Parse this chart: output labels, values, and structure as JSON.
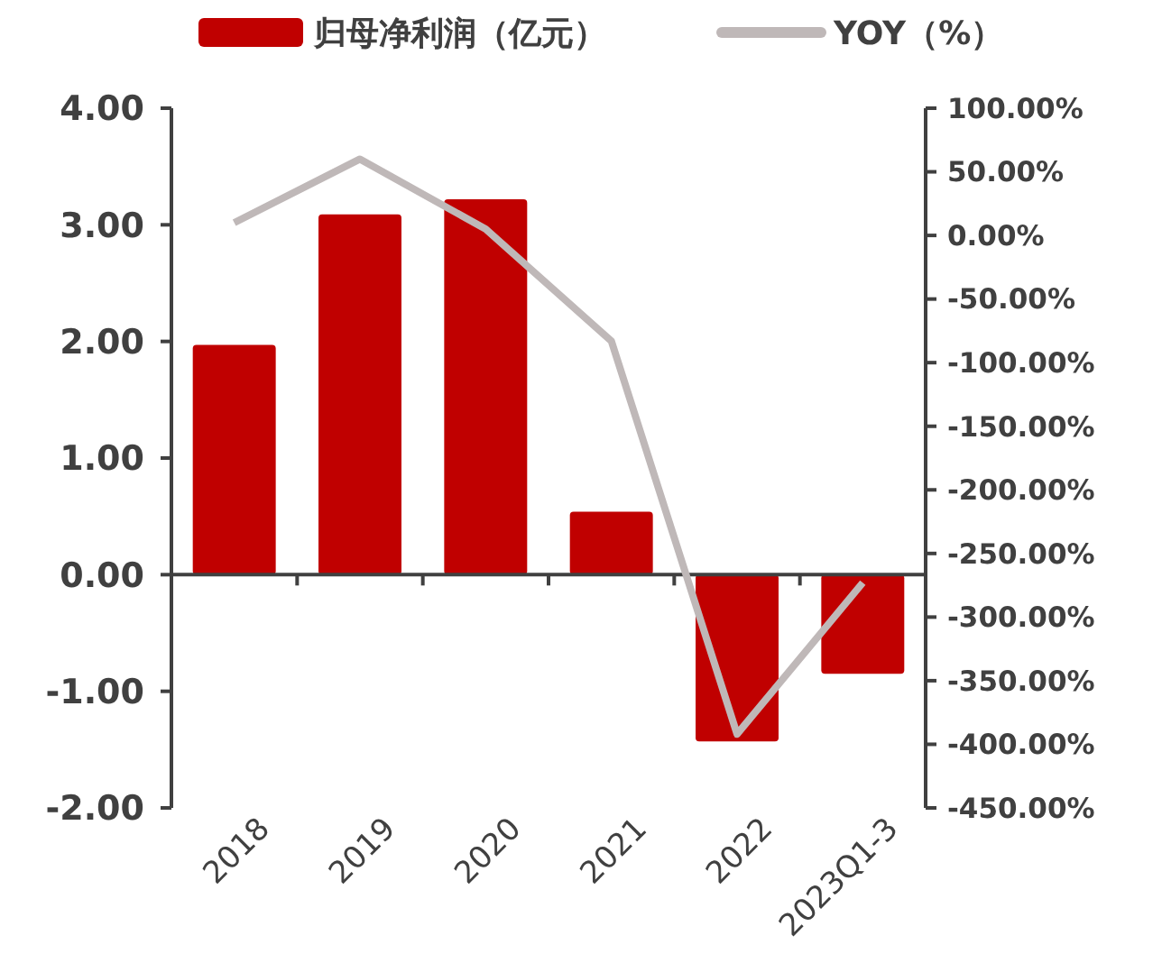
{
  "chart_data": {
    "type": "bar",
    "categories": [
      "2018",
      "2019",
      "2020",
      "2021",
      "2022",
      "2023Q1-3"
    ],
    "series": [
      {
        "name": "归母净利润（亿元）",
        "color": "#c00000",
        "values": [
          1.97,
          3.09,
          3.22,
          0.54,
          -1.43,
          -0.85
        ]
      },
      {
        "name": "YOY（%）",
        "color": "#bfb8b8",
        "type": "line",
        "axis": "y2",
        "values": [
          10,
          60,
          5,
          -83,
          -392,
          -273
        ]
      }
    ],
    "ylim": [
      -2,
      4
    ],
    "yticks": [
      {
        "value": -2,
        "label": "-2.00"
      },
      {
        "value": -1,
        "label": "-1.00"
      },
      {
        "value": 0,
        "label": "0.00"
      },
      {
        "value": 1,
        "label": "1.00"
      },
      {
        "value": 2,
        "label": "2.00"
      },
      {
        "value": 3,
        "label": "3.00"
      },
      {
        "value": 4,
        "label": "4.00"
      }
    ],
    "y2lim": [
      -450,
      100
    ],
    "y2ticks": [
      {
        "value": -450,
        "label": "-450.00%"
      },
      {
        "value": -400,
        "label": "-400.00%"
      },
      {
        "value": -350,
        "label": "-350.00%"
      },
      {
        "value": -300,
        "label": "-300.00%"
      },
      {
        "value": -250,
        "label": "-250.00%"
      },
      {
        "value": -200,
        "label": "-200.00%"
      },
      {
        "value": -150,
        "label": "-150.00%"
      },
      {
        "value": -100,
        "label": "-100.00%"
      },
      {
        "value": -50,
        "label": "-50.00%"
      },
      {
        "value": 0,
        "label": "0.00%"
      },
      {
        "value": 50,
        "label": "50.00%"
      },
      {
        "value": 100,
        "label": "100.00%"
      }
    ],
    "legend": "top"
  }
}
